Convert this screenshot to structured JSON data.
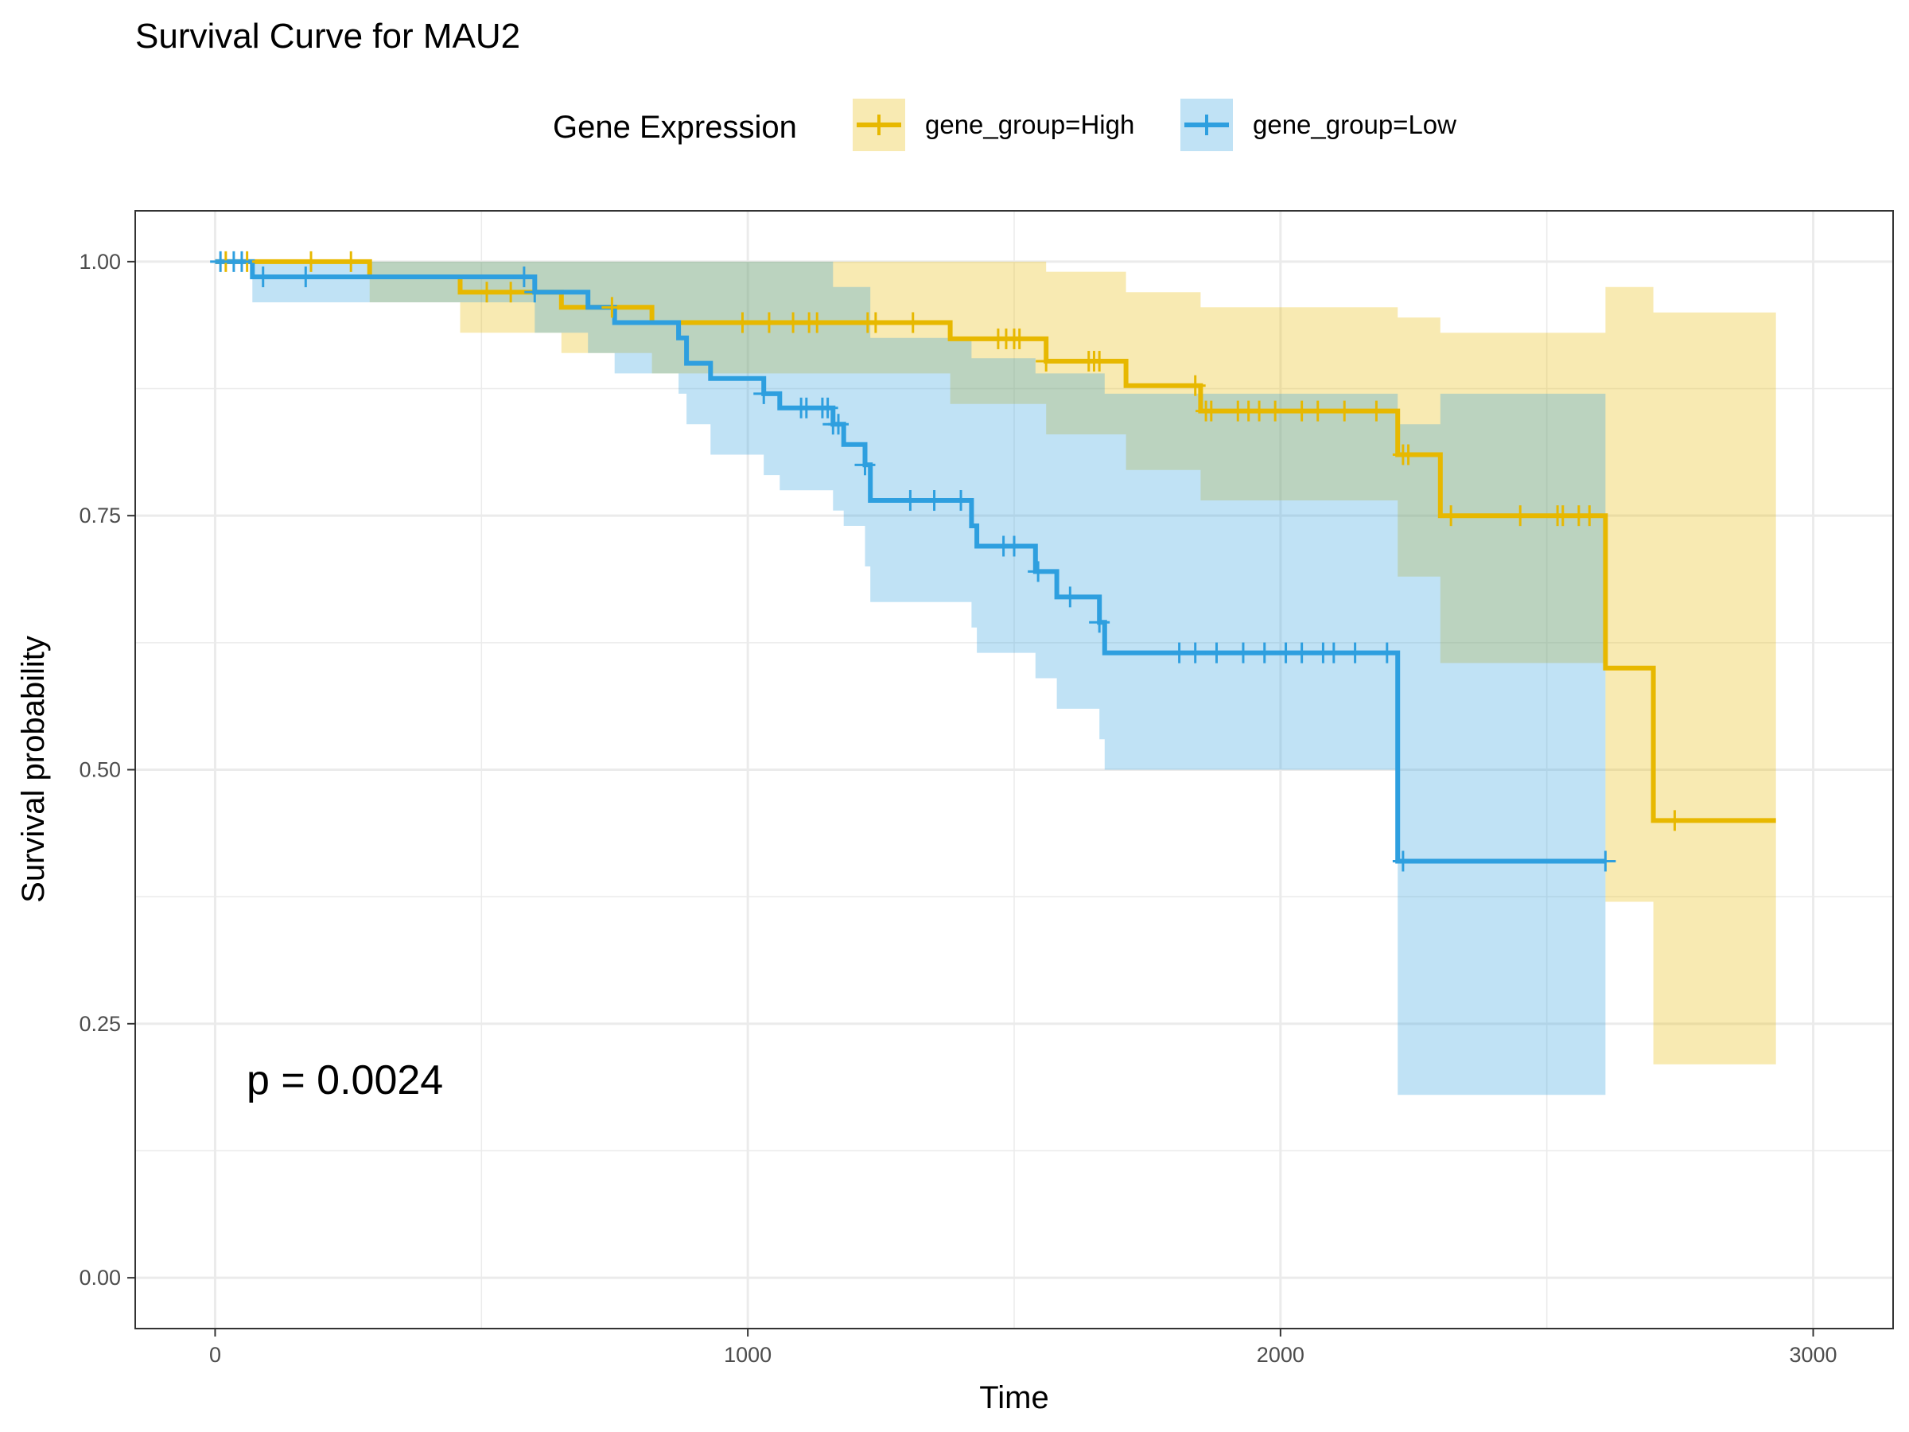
{
  "chart_data": {
    "type": "line",
    "subtype": "kaplan-meier survival curve",
    "title": "Survival Curve for MAU2",
    "xlabel": "Time",
    "ylabel": "Survival probability",
    "xlim": [
      -150,
      3150
    ],
    "ylim": [
      -0.05,
      1.05
    ],
    "x_ticks": [
      0,
      1000,
      2000,
      3000
    ],
    "x_tick_labels": [
      "0",
      "1000",
      "2000",
      "3000"
    ],
    "y_ticks": [
      0,
      0.25,
      0.5,
      0.75,
      1.0
    ],
    "y_tick_labels": [
      "0.00",
      "0.25",
      "0.50",
      "0.75",
      "1.00"
    ],
    "grid": true,
    "legend": {
      "title": "Gene Expression",
      "position": "top",
      "entries": [
        "gene_group=High",
        "gene_group=Low"
      ]
    },
    "annotation": "p = 0.0024",
    "series": [
      {
        "name": "gene_group=High",
        "color": "#E7B800",
        "steps": [
          [
            0,
            1.0
          ],
          [
            290,
            0.985
          ],
          [
            460,
            0.97
          ],
          [
            650,
            0.955
          ],
          [
            820,
            0.94
          ],
          [
            1380,
            0.924
          ],
          [
            1560,
            0.902
          ],
          [
            1710,
            0.878
          ],
          [
            1850,
            0.853
          ],
          [
            2220,
            0.81
          ],
          [
            2300,
            0.75
          ],
          [
            2610,
            0.6
          ],
          [
            2700,
            0.45
          ],
          [
            2930,
            0.45
          ]
        ],
        "ci_lower": [
          [
            0,
            1.0
          ],
          [
            290,
            0.96
          ],
          [
            460,
            0.93
          ],
          [
            650,
            0.91
          ],
          [
            820,
            0.89
          ],
          [
            1380,
            0.86
          ],
          [
            1560,
            0.83
          ],
          [
            1710,
            0.795
          ],
          [
            1850,
            0.765
          ],
          [
            2220,
            0.69
          ],
          [
            2300,
            0.605
          ],
          [
            2610,
            0.37
          ],
          [
            2700,
            0.21
          ],
          [
            2930,
            0.21
          ]
        ],
        "ci_upper": [
          [
            0,
            1.0
          ],
          [
            1380,
            1.0
          ],
          [
            1560,
            0.99
          ],
          [
            1710,
            0.97
          ],
          [
            1850,
            0.955
          ],
          [
            2220,
            0.945
          ],
          [
            2300,
            0.93
          ],
          [
            2610,
            0.975
          ],
          [
            2700,
            0.95
          ],
          [
            2930,
            0.95
          ]
        ],
        "censored_times": [
          20,
          60,
          180,
          255,
          510,
          555,
          745,
          990,
          1040,
          1085,
          1115,
          1130,
          1225,
          1240,
          1310,
          1470,
          1485,
          1500,
          1510,
          1560,
          1640,
          1650,
          1660,
          1840,
          1860,
          1870,
          1920,
          1940,
          1960,
          1990,
          2040,
          2070,
          2120,
          2180,
          2230,
          2240,
          2320,
          2450,
          2520,
          2530,
          2560,
          2580,
          2740
        ]
      },
      {
        "name": "gene_group=Low",
        "color": "#2E9FDF",
        "steps": [
          [
            0,
            1.0
          ],
          [
            70,
            0.985
          ],
          [
            600,
            0.97
          ],
          [
            700,
            0.955
          ],
          [
            750,
            0.94
          ],
          [
            870,
            0.925
          ],
          [
            885,
            0.9
          ],
          [
            930,
            0.885
          ],
          [
            1030,
            0.87
          ],
          [
            1060,
            0.856
          ],
          [
            1160,
            0.84
          ],
          [
            1180,
            0.82
          ],
          [
            1220,
            0.8
          ],
          [
            1230,
            0.765
          ],
          [
            1420,
            0.74
          ],
          [
            1430,
            0.72
          ],
          [
            1540,
            0.695
          ],
          [
            1580,
            0.67
          ],
          [
            1660,
            0.645
          ],
          [
            1670,
            0.615
          ],
          [
            2220,
            0.41
          ],
          [
            2610,
            0.41
          ]
        ],
        "ci_lower": [
          [
            0,
            1.0
          ],
          [
            70,
            0.96
          ],
          [
            600,
            0.93
          ],
          [
            700,
            0.91
          ],
          [
            750,
            0.89
          ],
          [
            870,
            0.87
          ],
          [
            885,
            0.84
          ],
          [
            930,
            0.81
          ],
          [
            1030,
            0.79
          ],
          [
            1060,
            0.775
          ],
          [
            1160,
            0.755
          ],
          [
            1180,
            0.74
          ],
          [
            1220,
            0.7
          ],
          [
            1230,
            0.665
          ],
          [
            1420,
            0.64
          ],
          [
            1430,
            0.615
          ],
          [
            1540,
            0.59
          ],
          [
            1580,
            0.56
          ],
          [
            1660,
            0.53
          ],
          [
            1670,
            0.5
          ],
          [
            2220,
            0.18
          ],
          [
            2610,
            0.18
          ]
        ],
        "ci_upper": [
          [
            0,
            1.0
          ],
          [
            1030,
            1.0
          ],
          [
            1160,
            0.975
          ],
          [
            1230,
            0.925
          ],
          [
            1420,
            0.905
          ],
          [
            1540,
            0.89
          ],
          [
            1670,
            0.87
          ],
          [
            2220,
            0.84
          ],
          [
            2300,
            0.87
          ],
          [
            2610,
            0.87
          ]
        ],
        "censored_times": [
          10,
          35,
          50,
          90,
          170,
          580,
          600,
          1030,
          1100,
          1110,
          1140,
          1150,
          1160,
          1170,
          1220,
          1305,
          1350,
          1400,
          1480,
          1500,
          1545,
          1605,
          1660,
          1810,
          1840,
          1880,
          1930,
          1970,
          2010,
          2040,
          2080,
          2100,
          2140,
          2200,
          2230,
          2610
        ]
      }
    ]
  }
}
